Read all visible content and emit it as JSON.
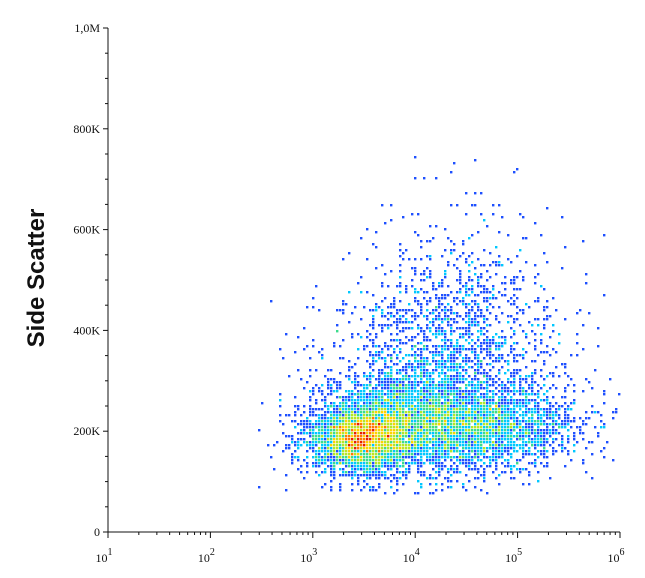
{
  "chart_data": {
    "type": "scatter",
    "title": "",
    "xlabel": "",
    "ylabel": "Side Scatter",
    "x_scale": "log",
    "xlim": [
      10,
      1000000
    ],
    "ylim": [
      0,
      1000000
    ],
    "x_ticks": [
      {
        "base": "10",
        "exp": "1",
        "value": 10
      },
      {
        "base": "10",
        "exp": "2",
        "value": 100
      },
      {
        "base": "10",
        "exp": "3",
        "value": 1000
      },
      {
        "base": "10",
        "exp": "4",
        "value": 10000
      },
      {
        "base": "10",
        "exp": "5",
        "value": 100000
      },
      {
        "base": "10",
        "exp": "6",
        "value": 1000000
      }
    ],
    "y_ticks": [
      {
        "label": "0",
        "value": 0
      },
      {
        "label": "200K",
        "value": 200000
      },
      {
        "label": "400K",
        "value": 400000
      },
      {
        "label": "600K",
        "value": 600000
      },
      {
        "label": "800K",
        "value": 800000
      },
      {
        "label": "1,0M",
        "value": 1000000
      }
    ],
    "grid": false,
    "density_colormap": [
      "#00008b",
      "#1e50ff",
      "#00c8ff",
      "#3cdc8c",
      "#b4e628",
      "#ffd200",
      "#ff7800",
      "#e61e00"
    ],
    "populations": [
      {
        "center_x": 3000,
        "center_y": 185000,
        "log_spread_x": 0.25,
        "spread_y": 32000,
        "count": 3000
      },
      {
        "center_x": 8000,
        "center_y": 220000,
        "log_spread_x": 0.4,
        "spread_y": 50000,
        "count": 2400
      },
      {
        "center_x": 50000,
        "center_y": 210000,
        "log_spread_x": 0.45,
        "spread_y": 40000,
        "count": 2200
      },
      {
        "center_x": 20000,
        "center_y": 330000,
        "log_spread_x": 0.55,
        "spread_y": 90000,
        "count": 1600
      },
      {
        "center_x": 30000,
        "center_y": 480000,
        "log_spread_x": 0.5,
        "spread_y": 90000,
        "count": 350
      }
    ],
    "sparse_points": [
      {
        "x": 300,
        "y": 90000
      },
      {
        "x": 550,
        "y": 110000
      },
      {
        "x": 4000,
        "y": 570000
      },
      {
        "x": 6000,
        "y": 650000
      },
      {
        "x": 10000,
        "y": 700000
      },
      {
        "x": 25000,
        "y": 730000
      },
      {
        "x": 40000,
        "y": 735000
      },
      {
        "x": 100000,
        "y": 720000
      },
      {
        "x": 200000,
        "y": 640000
      },
      {
        "x": 700000,
        "y": 590000
      },
      {
        "x": 3000,
        "y": 580000
      },
      {
        "x": 150000,
        "y": 610000
      }
    ]
  }
}
